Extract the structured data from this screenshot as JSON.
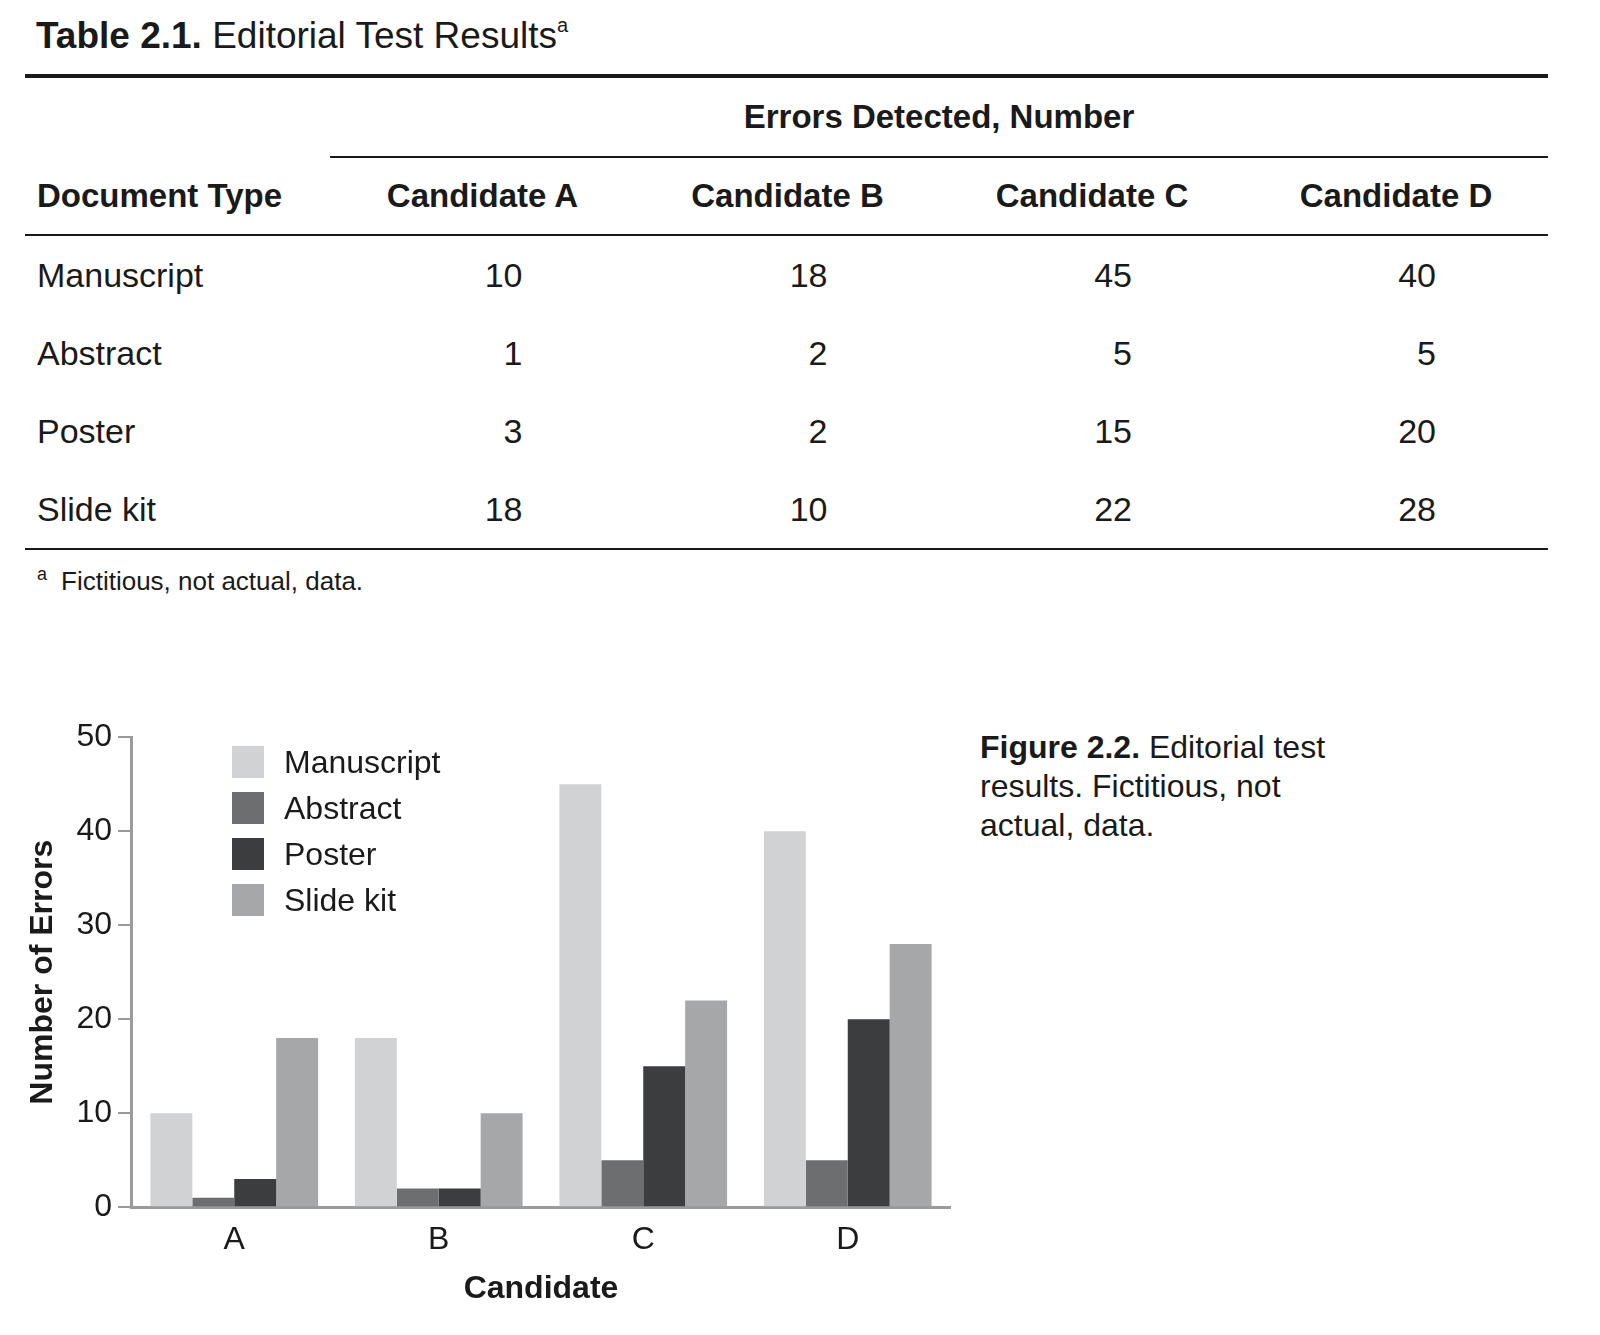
{
  "table": {
    "label": "Table 2.1.",
    "title": "Editorial Test Results",
    "title_note_mark": "a",
    "group_header": "Errors Detected, Number",
    "columns": [
      "Document Type",
      "Candidate A",
      "Candidate B",
      "Candidate C",
      "Candidate D"
    ],
    "rows": [
      [
        "Manuscript",
        10,
        18,
        45,
        40
      ],
      [
        "Abstract",
        1,
        2,
        5,
        5
      ],
      [
        "Poster",
        3,
        2,
        15,
        20
      ],
      [
        "Slide kit",
        18,
        10,
        22,
        28
      ]
    ],
    "footnote": {
      "mark": "a",
      "text": "Fictitious, not actual, data."
    }
  },
  "chart_data": {
    "type": "bar",
    "title": "Figure 2.2.",
    "subtitle": "Editorial test results. Fictitious, not actual, data.",
    "x_label": "Candidate",
    "y_label": "Number of Errors",
    "categories": [
      "A",
      "B",
      "C",
      "D"
    ],
    "series": [
      {
        "name": "Manuscript",
        "color": "#d1d2d4",
        "values": [
          10,
          18,
          45,
          40
        ]
      },
      {
        "name": "Abstract",
        "color": "#6d6e70",
        "values": [
          1,
          2,
          5,
          5
        ]
      },
      {
        "name": "Poster",
        "color": "#3c3d3f",
        "values": [
          3,
          2,
          15,
          20
        ]
      },
      {
        "name": "Slide kit",
        "color": "#a6a7a9",
        "values": [
          18,
          10,
          22,
          28
        ]
      }
    ],
    "ylim": [
      0,
      50
    ],
    "yticks": [
      0,
      10,
      20,
      30,
      40,
      50
    ],
    "grid": false,
    "legend": "upper left"
  }
}
